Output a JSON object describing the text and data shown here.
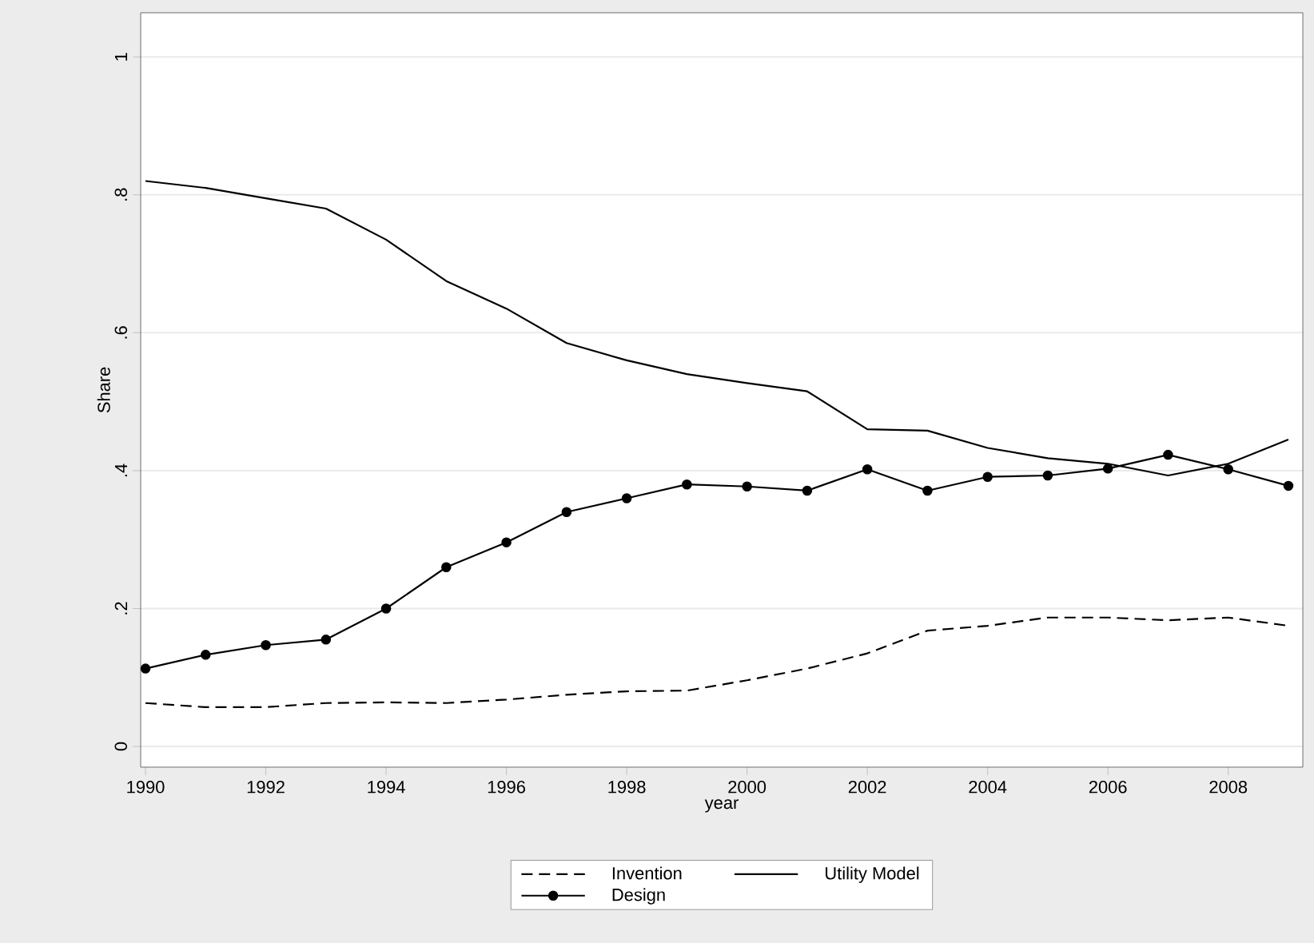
{
  "chart_data": {
    "type": "line",
    "xlabel": "year",
    "ylabel": "Share",
    "x": [
      1990,
      1991,
      1992,
      1993,
      1994,
      1995,
      1996,
      1997,
      1998,
      1999,
      2000,
      2001,
      2002,
      2003,
      2004,
      2005,
      2006,
      2007,
      2008,
      2009
    ],
    "series": [
      {
        "name": "Invention",
        "color": "#000000",
        "line_style": "dashed",
        "marker": "none",
        "values": [
          0.063,
          0.057,
          0.057,
          0.063,
          0.064,
          0.063,
          0.068,
          0.075,
          0.08,
          0.081,
          0.096,
          0.113,
          0.135,
          0.168,
          0.175,
          0.187,
          0.187,
          0.183,
          0.187,
          0.175
        ]
      },
      {
        "name": "Utility Model",
        "color": "#000000",
        "line_style": "solid",
        "marker": "none",
        "values": [
          0.82,
          0.81,
          0.795,
          0.78,
          0.735,
          0.675,
          0.635,
          0.585,
          0.56,
          0.54,
          0.527,
          0.515,
          0.46,
          0.458,
          0.433,
          0.418,
          0.41,
          0.393,
          0.41,
          0.445
        ]
      },
      {
        "name": "Design",
        "color": "#000000",
        "line_style": "solid",
        "marker": "circle",
        "values": [
          0.113,
          0.133,
          0.147,
          0.155,
          0.2,
          0.26,
          0.296,
          0.34,
          0.36,
          0.38,
          0.377,
          0.371,
          0.402,
          0.371,
          0.391,
          0.393,
          0.403,
          0.423,
          0.402,
          0.378
        ]
      }
    ],
    "xlim": [
      1989.92,
      2009.24
    ],
    "ylim": [
      -0.03,
      1.064
    ],
    "xticks": [
      1990,
      1992,
      1994,
      1996,
      1998,
      2000,
      2002,
      2004,
      2006,
      2008
    ],
    "yticks": [
      0,
      {
        "value": 0.2,
        "label": ".2"
      },
      {
        "value": 0.4,
        "label": ".4"
      },
      {
        "value": 0.6,
        "label": ".6"
      },
      {
        "value": 0.8,
        "label": ".8"
      },
      1
    ],
    "grid": "y",
    "legend": "bottom"
  }
}
